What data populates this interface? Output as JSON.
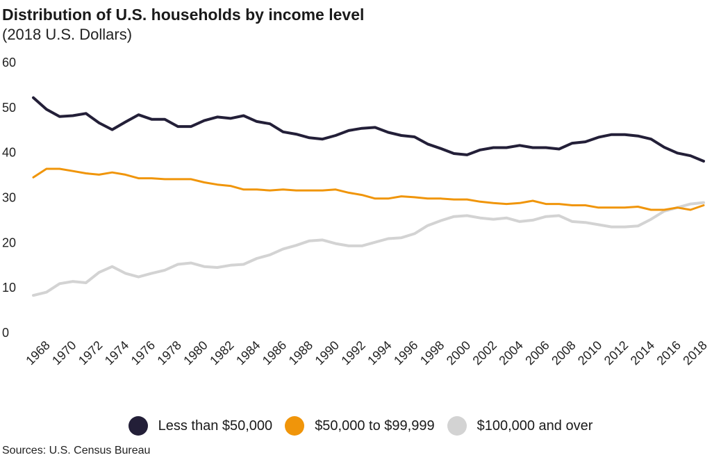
{
  "chart_data": {
    "type": "line",
    "title": "Distribution of U.S. households by income level",
    "subtitle": "(2018 U.S. Dollars)",
    "xlabel": "",
    "ylabel": "",
    "ylim": [
      0,
      60
    ],
    "yticks": [
      0,
      10,
      20,
      30,
      40,
      50,
      60
    ],
    "grid": false,
    "legend_position": "bottom",
    "x": [
      1967,
      1968,
      1969,
      1970,
      1971,
      1972,
      1973,
      1974,
      1975,
      1976,
      1977,
      1978,
      1979,
      1980,
      1981,
      1982,
      1983,
      1984,
      1985,
      1986,
      1987,
      1988,
      1989,
      1990,
      1991,
      1992,
      1993,
      1994,
      1995,
      1996,
      1997,
      1998,
      1999,
      2000,
      2001,
      2002,
      2003,
      2004,
      2005,
      2006,
      2007,
      2008,
      2009,
      2010,
      2011,
      2012,
      2013,
      2014,
      2015,
      2016,
      2017,
      2018
    ],
    "xtick_labels": [
      "1968",
      "1970",
      "1972",
      "1974",
      "1976",
      "1978",
      "1980",
      "1982",
      "1984",
      "1986",
      "1988",
      "1990",
      "1992",
      "1994",
      "1996",
      "1998",
      "2000",
      "2002",
      "2004",
      "2006",
      "2008",
      "2010",
      "2012",
      "2014",
      "2016",
      "2018"
    ],
    "series": [
      {
        "name": "Less than $50,000",
        "color": "#231f38",
        "values": [
          52.2,
          49.6,
          48.0,
          48.2,
          48.7,
          46.6,
          45.1,
          46.8,
          48.4,
          47.4,
          47.4,
          45.8,
          45.8,
          47.1,
          47.9,
          47.6,
          48.2,
          46.9,
          46.4,
          44.6,
          44.1,
          43.3,
          43.0,
          43.8,
          44.9,
          45.4,
          45.6,
          44.5,
          43.8,
          43.5,
          41.9,
          40.9,
          39.8,
          39.5,
          40.6,
          41.1,
          41.1,
          41.6,
          41.1,
          41.1,
          40.8,
          42.1,
          42.4,
          43.4,
          44.0,
          44.0,
          43.7,
          43.0,
          41.2,
          39.9,
          39.3,
          38.1
        ],
        "line_width": 4
      },
      {
        "name": "$50,000 to $99,999",
        "color": "#f0950a",
        "values": [
          34.5,
          36.4,
          36.4,
          35.9,
          35.4,
          35.1,
          35.6,
          35.1,
          34.3,
          34.3,
          34.1,
          34.1,
          34.1,
          33.4,
          32.9,
          32.6,
          31.8,
          31.8,
          31.6,
          31.8,
          31.6,
          31.6,
          31.6,
          31.8,
          31.1,
          30.6,
          29.8,
          29.8,
          30.3,
          30.1,
          29.8,
          29.8,
          29.6,
          29.6,
          29.1,
          28.8,
          28.6,
          28.8,
          29.3,
          28.6,
          28.6,
          28.3,
          28.3,
          27.8,
          27.8,
          27.8,
          28.0,
          27.3,
          27.3,
          27.8,
          27.3,
          28.3
        ],
        "line_width": 3
      },
      {
        "name": "$100,000 and over",
        "color": "#d3d3d3",
        "values": [
          8.3,
          9.0,
          10.9,
          11.4,
          11.1,
          13.4,
          14.7,
          13.2,
          12.4,
          13.2,
          13.9,
          15.2,
          15.5,
          14.7,
          14.5,
          15.0,
          15.2,
          16.5,
          17.3,
          18.6,
          19.4,
          20.4,
          20.6,
          19.8,
          19.3,
          19.3,
          20.1,
          20.9,
          21.1,
          22.0,
          23.8,
          24.9,
          25.8,
          26.0,
          25.5,
          25.2,
          25.5,
          24.7,
          25.0,
          25.8,
          26.0,
          24.7,
          24.5,
          24.0,
          23.5,
          23.5,
          23.7,
          25.2,
          27.0,
          27.8,
          28.6,
          28.9
        ],
        "line_width": 4
      }
    ]
  },
  "source": "Sources: U.S. Census Bureau"
}
